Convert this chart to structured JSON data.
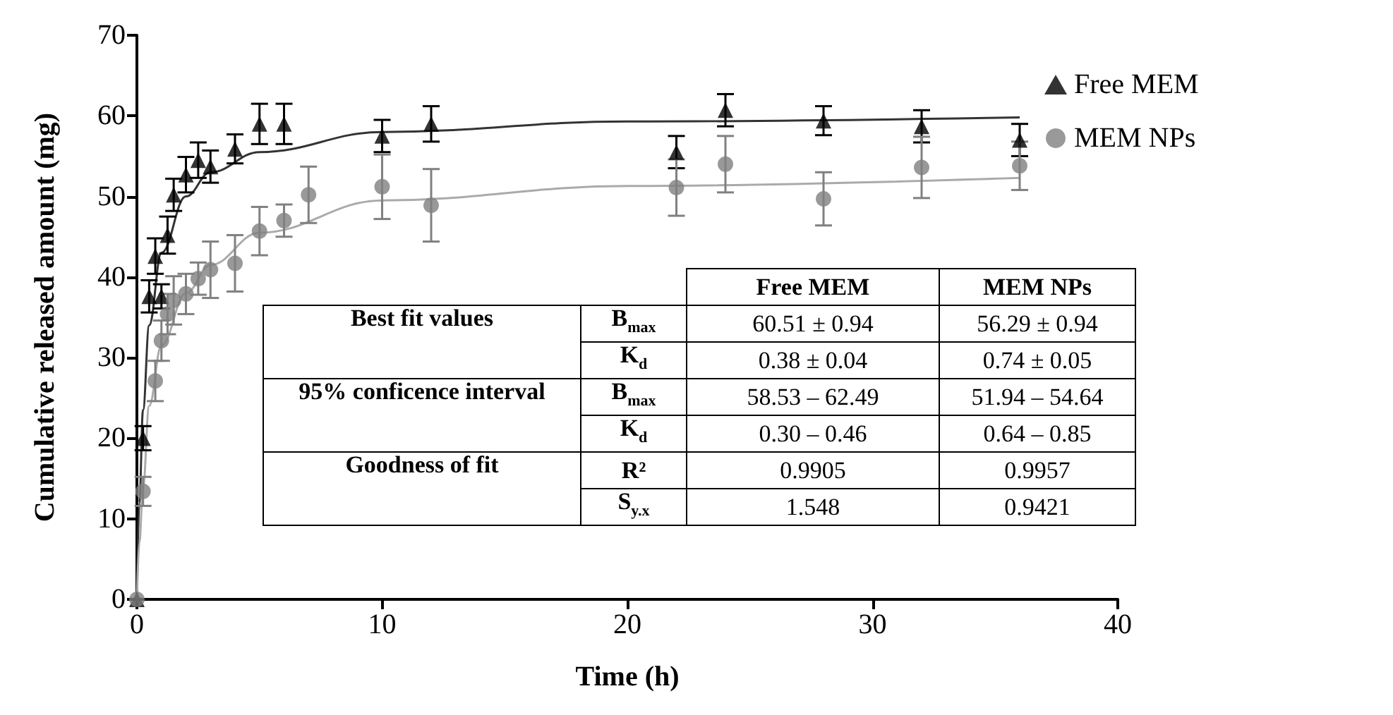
{
  "chart_data": {
    "type": "scatter",
    "xlabel": "Time (h)",
    "ylabel": "Cumulative released amount (mg)",
    "xlim": [
      0,
      40
    ],
    "xticks": [
      0,
      10,
      20,
      30,
      40
    ],
    "ylim": [
      0,
      70
    ],
    "yticks": [
      0,
      10,
      20,
      30,
      40,
      50,
      60,
      70
    ],
    "grid": false,
    "legend": "right",
    "series": [
      {
        "name": "Free MEM",
        "color": "#000000",
        "marker": "triangle",
        "x": [
          0,
          0.25,
          0.5,
          0.75,
          1,
          1.25,
          1.5,
          2,
          2.5,
          3,
          4,
          5,
          6,
          10,
          12,
          22,
          24,
          28,
          32,
          36
        ],
        "values": [
          0,
          20,
          37.6,
          42.6,
          37.6,
          45.2,
          50.2,
          52.7,
          54.5,
          53.7,
          55.9,
          59,
          59,
          57.5,
          59,
          55.5,
          60.7,
          59.4,
          58.7,
          57
        ],
        "errors": [
          null,
          1.5,
          2,
          2.2,
          1.5,
          2.3,
          2,
          2.2,
          2.2,
          2,
          1.8,
          2.5,
          2.5,
          2,
          2.2,
          2,
          2,
          1.8,
          2,
          2
        ]
      },
      {
        "name": "MEM NPs",
        "color": "#808080",
        "marker": "circle",
        "x": [
          0,
          0.25,
          0.75,
          1,
          1.25,
          1.5,
          2,
          2.5,
          3,
          4,
          5,
          6,
          7,
          10,
          12,
          22,
          24,
          28,
          32,
          36
        ],
        "values": [
          0,
          13.4,
          27.1,
          32.1,
          35.4,
          37.1,
          37.9,
          39.8,
          40.9,
          41.7,
          45.7,
          47,
          50.2,
          51.2,
          48.9,
          51.1,
          54,
          49.7,
          53.6,
          53.8
        ],
        "errors": [
          null,
          1.8,
          2.5,
          2.5,
          2.5,
          3,
          2.5,
          2,
          3.5,
          3.5,
          3,
          2,
          3.5,
          4,
          4.5,
          3.5,
          3.5,
          3.3,
          3.8,
          3
        ]
      },
      {
        "type": "line",
        "color": "#333333",
        "marker": "none",
        "x": [
          0,
          0.1,
          0.25,
          0.5,
          1,
          2,
          3,
          5,
          10,
          20,
          36
        ],
        "values": [
          0,
          12,
          23.5,
          34,
          43,
          50,
          53,
          55.5,
          58,
          59.3,
          59.8
        ]
      },
      {
        "type": "line",
        "color": "#aaaaaa",
        "marker": "none",
        "x": [
          0,
          0.1,
          0.25,
          0.5,
          1,
          2,
          3,
          5,
          10,
          20,
          36
        ],
        "values": [
          0,
          7,
          14,
          24,
          31.5,
          38,
          41.5,
          45.5,
          49.5,
          51.3,
          52.3
        ]
      }
    ],
    "annotations": [
      "Free MEM",
      "MEM NPs",
      "Best fit values",
      "B$_{max}$",
      "60.51 ± 0.94",
      "56.29 ± 0.94",
      "K$_{d}$",
      "0.38 ± 0.04",
      "0.74 ± 0.05",
      "95% conficence interval",
      "B$_{max}$",
      "58.53 – 62.49",
      "51.94 – 54.64",
      "K$_{d}$",
      "0.30 – 0.46",
      "0.64 – 0.85",
      "Goodness of fit",
      "R²",
      "0.9905",
      "0.9957",
      "S$_{y.x}$",
      "1.548",
      "0.9421"
    ]
  }
}
